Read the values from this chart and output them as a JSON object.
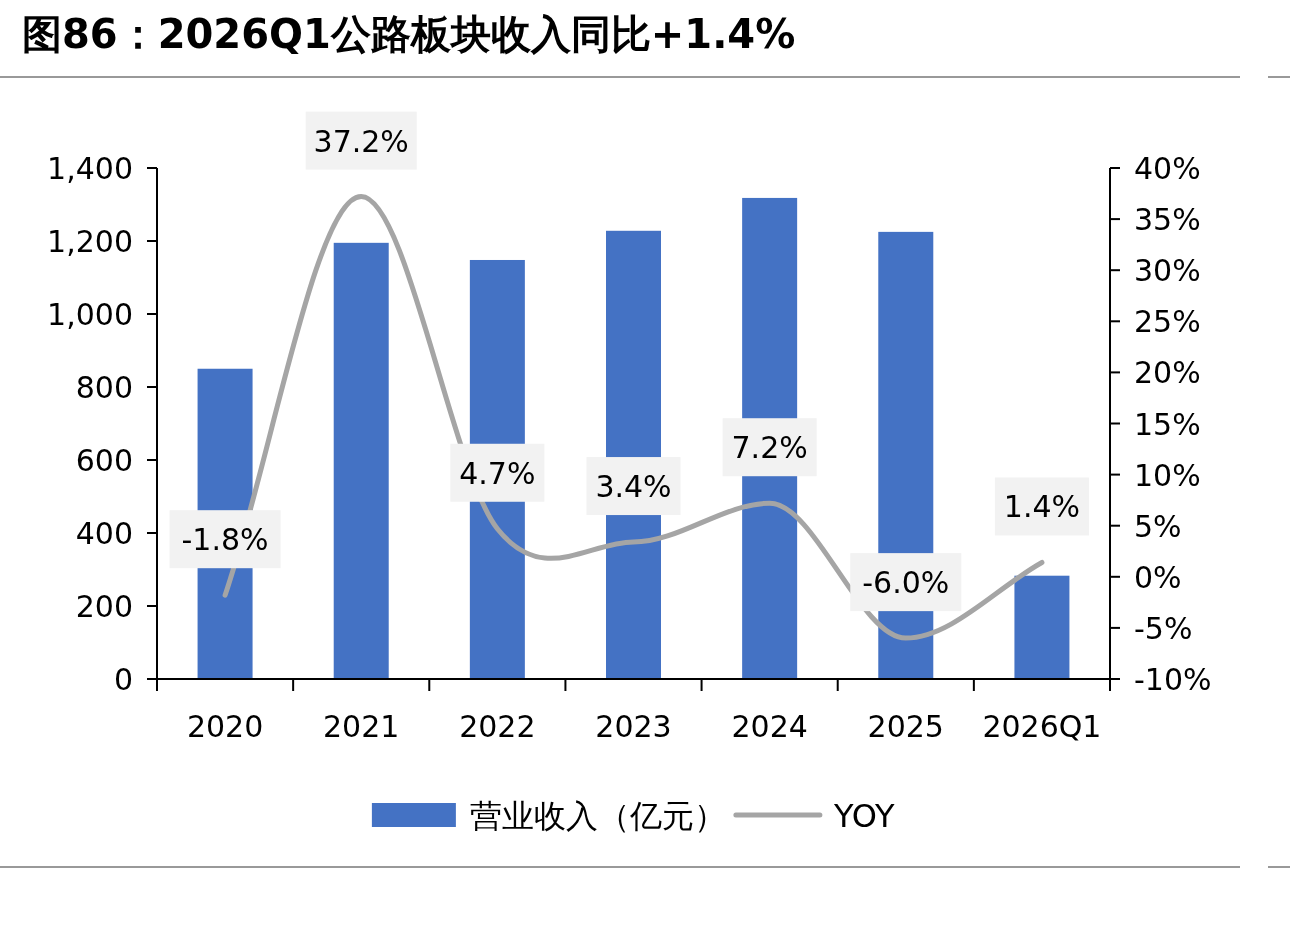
{
  "chart_data": {
    "type": "bar",
    "title": "图86：2026Q1公路板块收入同比+1.4%",
    "categories": [
      "2020",
      "2021",
      "2022",
      "2023",
      "2024",
      "2025",
      "2026Q1"
    ],
    "series": [
      {
        "name": "营业收入（亿元）",
        "color": "#4472c4",
        "values": [
          850,
          1195,
          1148,
          1228,
          1318,
          1225,
          283
        ]
      },
      {
        "name": "YOY",
        "type": "line",
        "axis": "y2",
        "color": "#a5a5a5",
        "marker": "none",
        "line_style": "solid",
        "values": [
          -1.8,
          37.2,
          4.7,
          3.4,
          7.2,
          -6.0,
          1.4
        ],
        "value_labels": [
          "-1.8%",
          "37.2%",
          "4.7%",
          "3.4%",
          "7.2%",
          "-6.0%",
          "1.4%"
        ]
      }
    ],
    "ylim": [
      0,
      1400
    ],
    "yticks": [
      0,
      200,
      400,
      600,
      800,
      {
        "value": 1000,
        "label": "1,000"
      },
      {
        "value": 1200,
        "label": "1,200"
      },
      {
        "value": 1400,
        "label": "1,400"
      }
    ],
    "y2lim": [
      -10,
      40
    ],
    "y2ticks": [
      {
        "value": -10,
        "label": "-10%"
      },
      {
        "value": -5,
        "label": "-5%"
      },
      {
        "value": 0,
        "label": "0%"
      },
      {
        "value": 5,
        "label": "5%"
      },
      {
        "value": 10,
        "label": "10%"
      },
      {
        "value": 15,
        "label": "15%"
      },
      {
        "value": 20,
        "label": "20%"
      },
      {
        "value": 25,
        "label": "25%"
      },
      {
        "value": 30,
        "label": "30%"
      },
      {
        "value": 35,
        "label": "35%"
      },
      {
        "value": 40,
        "label": "40%"
      }
    ],
    "grid": false,
    "legend": "bottom"
  }
}
